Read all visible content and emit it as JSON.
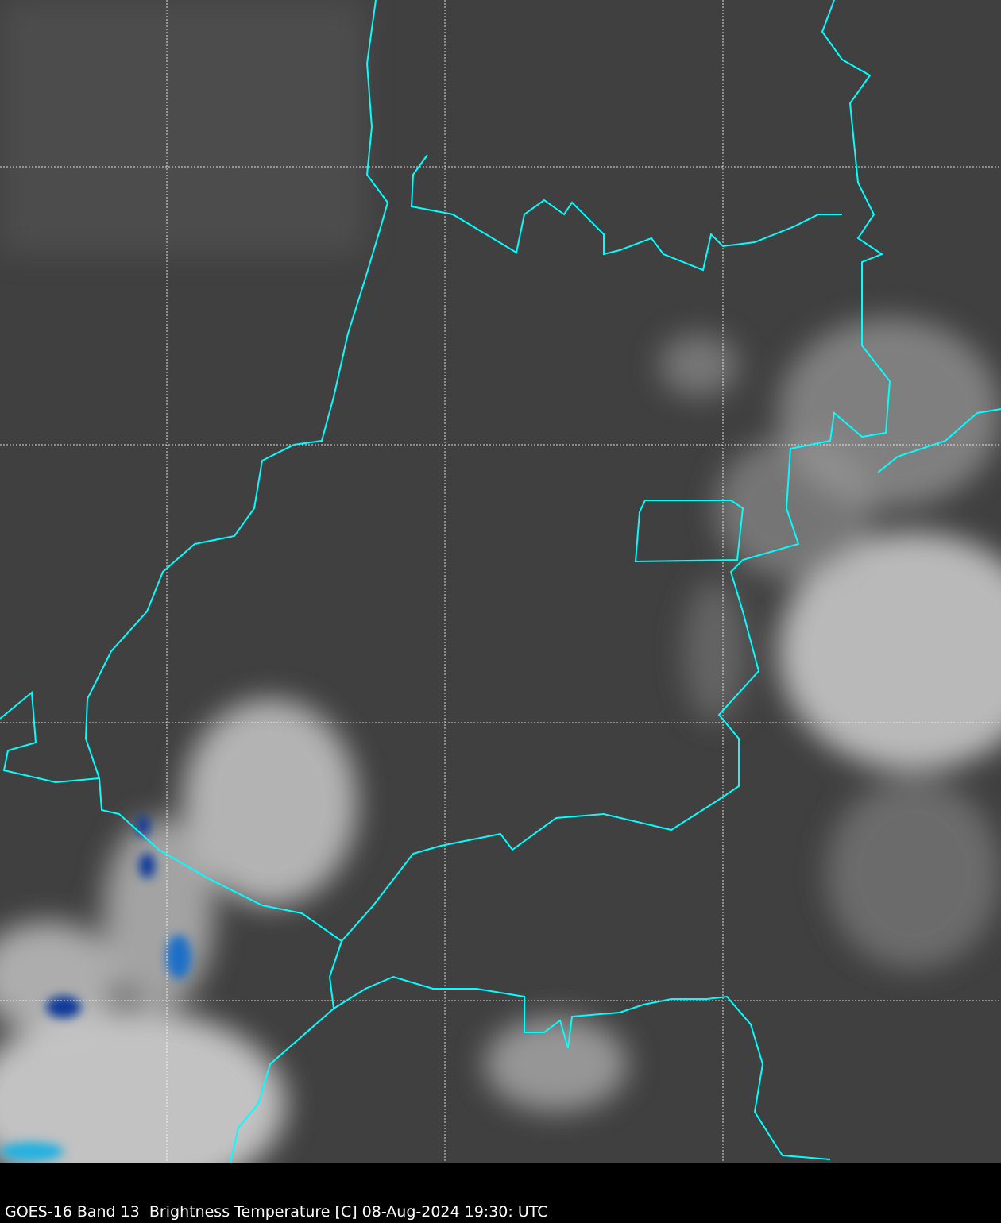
{
  "caption": "GOES-16 Band 13  Brightness Temperature [C] 08-Aug-2024 19:30: UTC",
  "colors": {
    "background": "#3e3e3e",
    "border": "#00ffff",
    "grid": "#ffffff",
    "cloud": "#d8d8d8",
    "cold_cloud": "#1040a0",
    "caption_bar": "#000000"
  },
  "grid": {
    "style": "dashed",
    "visible": true
  }
}
